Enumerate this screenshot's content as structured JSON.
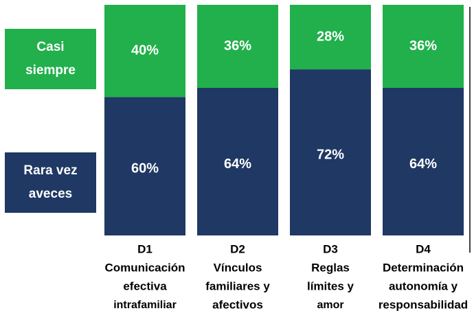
{
  "chart_data": {
    "type": "stacked_bar_100",
    "categories": [
      [
        "D1",
        "Comunicación",
        "efectiva",
        "intrafamiliar"
      ],
      [
        "D2",
        "Vínculos",
        "familiares y",
        "afectivos"
      ],
      [
        "D3",
        "Reglas",
        "límites y",
        "amor"
      ],
      [
        "D4",
        "Determinación",
        "autonomía y",
        "responsabilidad"
      ]
    ],
    "series": [
      {
        "name": "Rara vez aveces",
        "color": "#1f3864",
        "values": [
          60,
          64,
          72,
          64
        ],
        "value_labels": [
          "60%",
          "64%",
          "72%",
          "64%"
        ]
      },
      {
        "name": "Casi siempre",
        "color": "#21b04b",
        "values": [
          40,
          36,
          28,
          36
        ],
        "value_labels": [
          "40%",
          "36%",
          "28%",
          "36%"
        ]
      }
    ],
    "ylim": [
      0,
      100
    ]
  }
}
